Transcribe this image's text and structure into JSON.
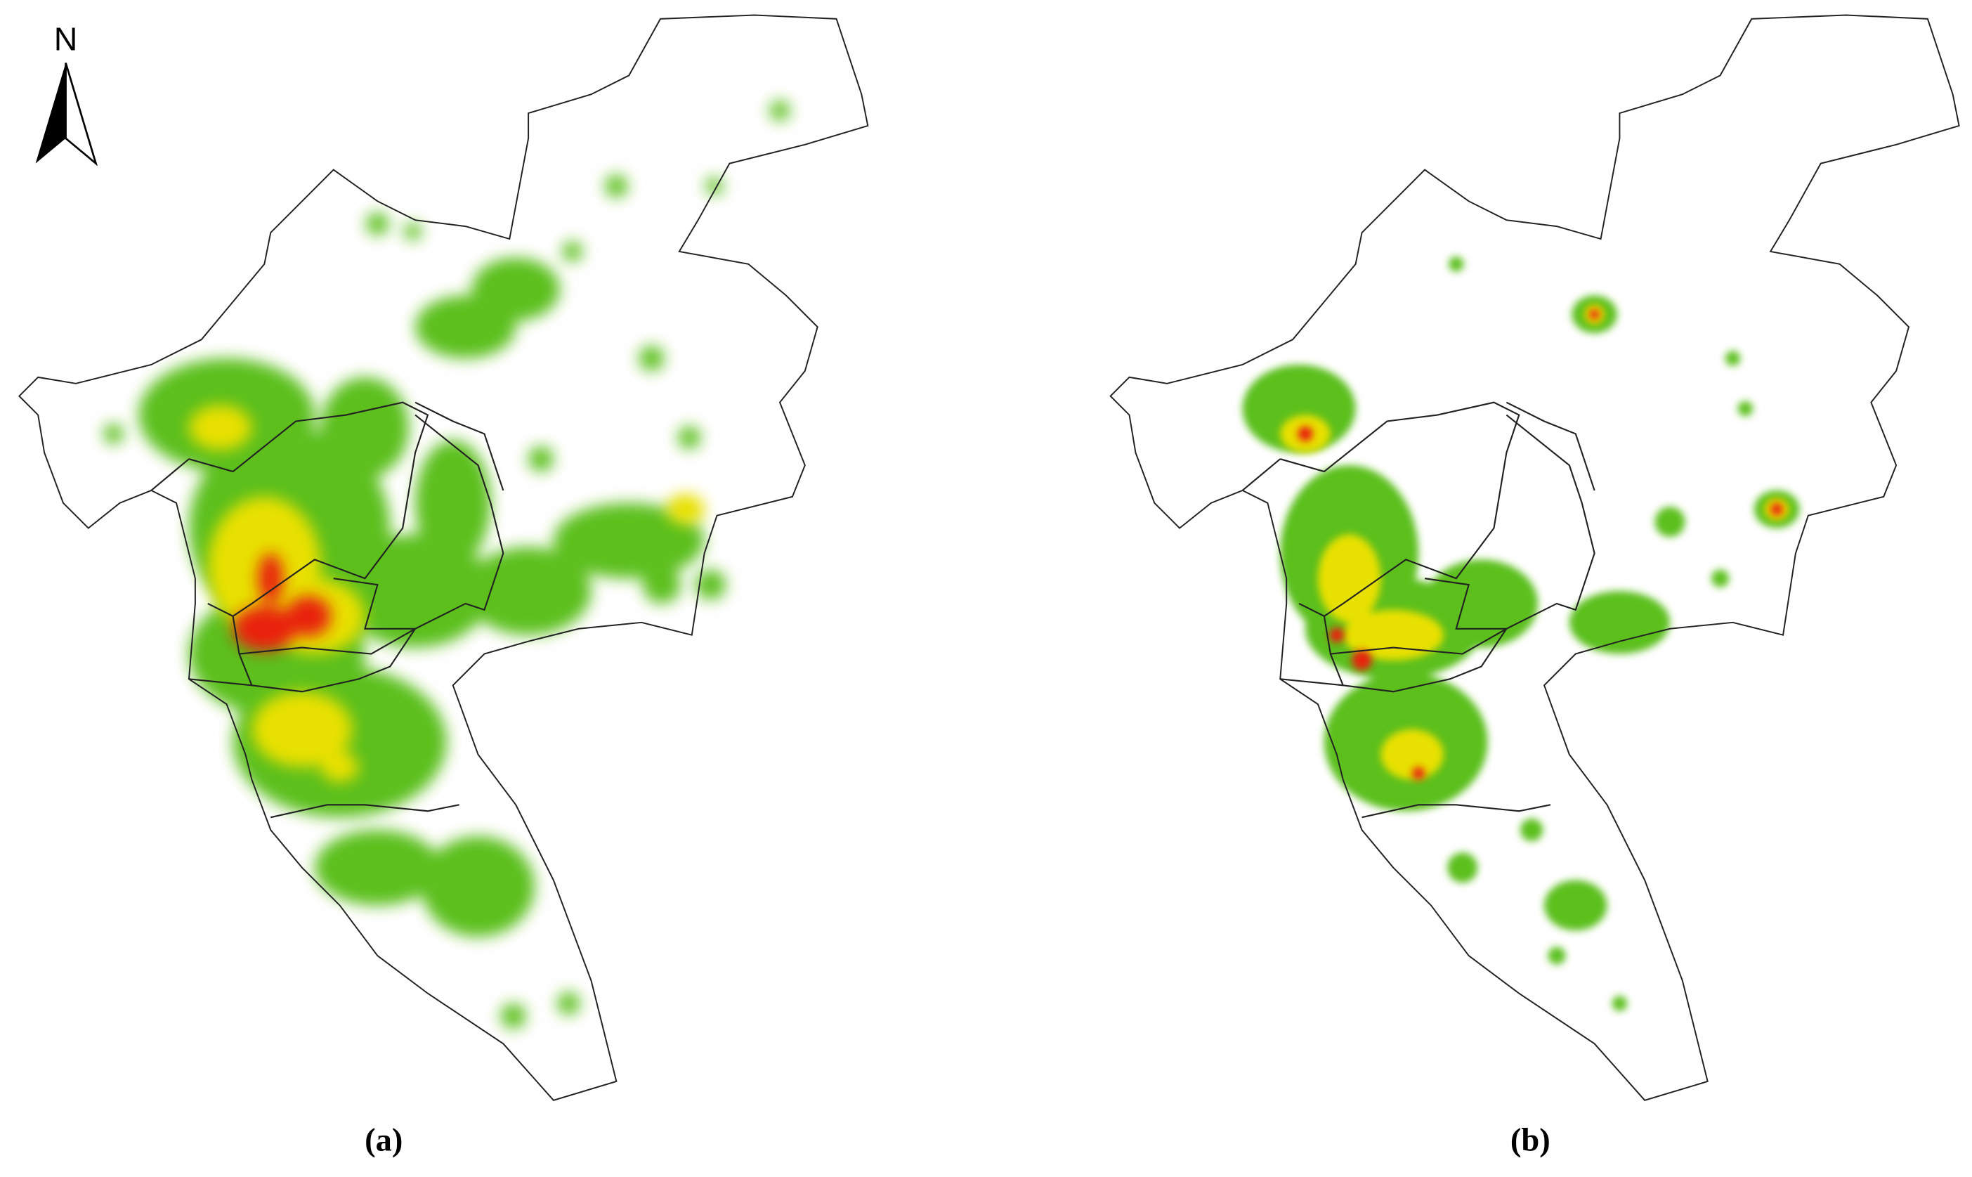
{
  "north_arrow": {
    "label": "N"
  },
  "panels": [
    {
      "label": "(a)"
    },
    {
      "label": "(b)"
    }
  ]
}
